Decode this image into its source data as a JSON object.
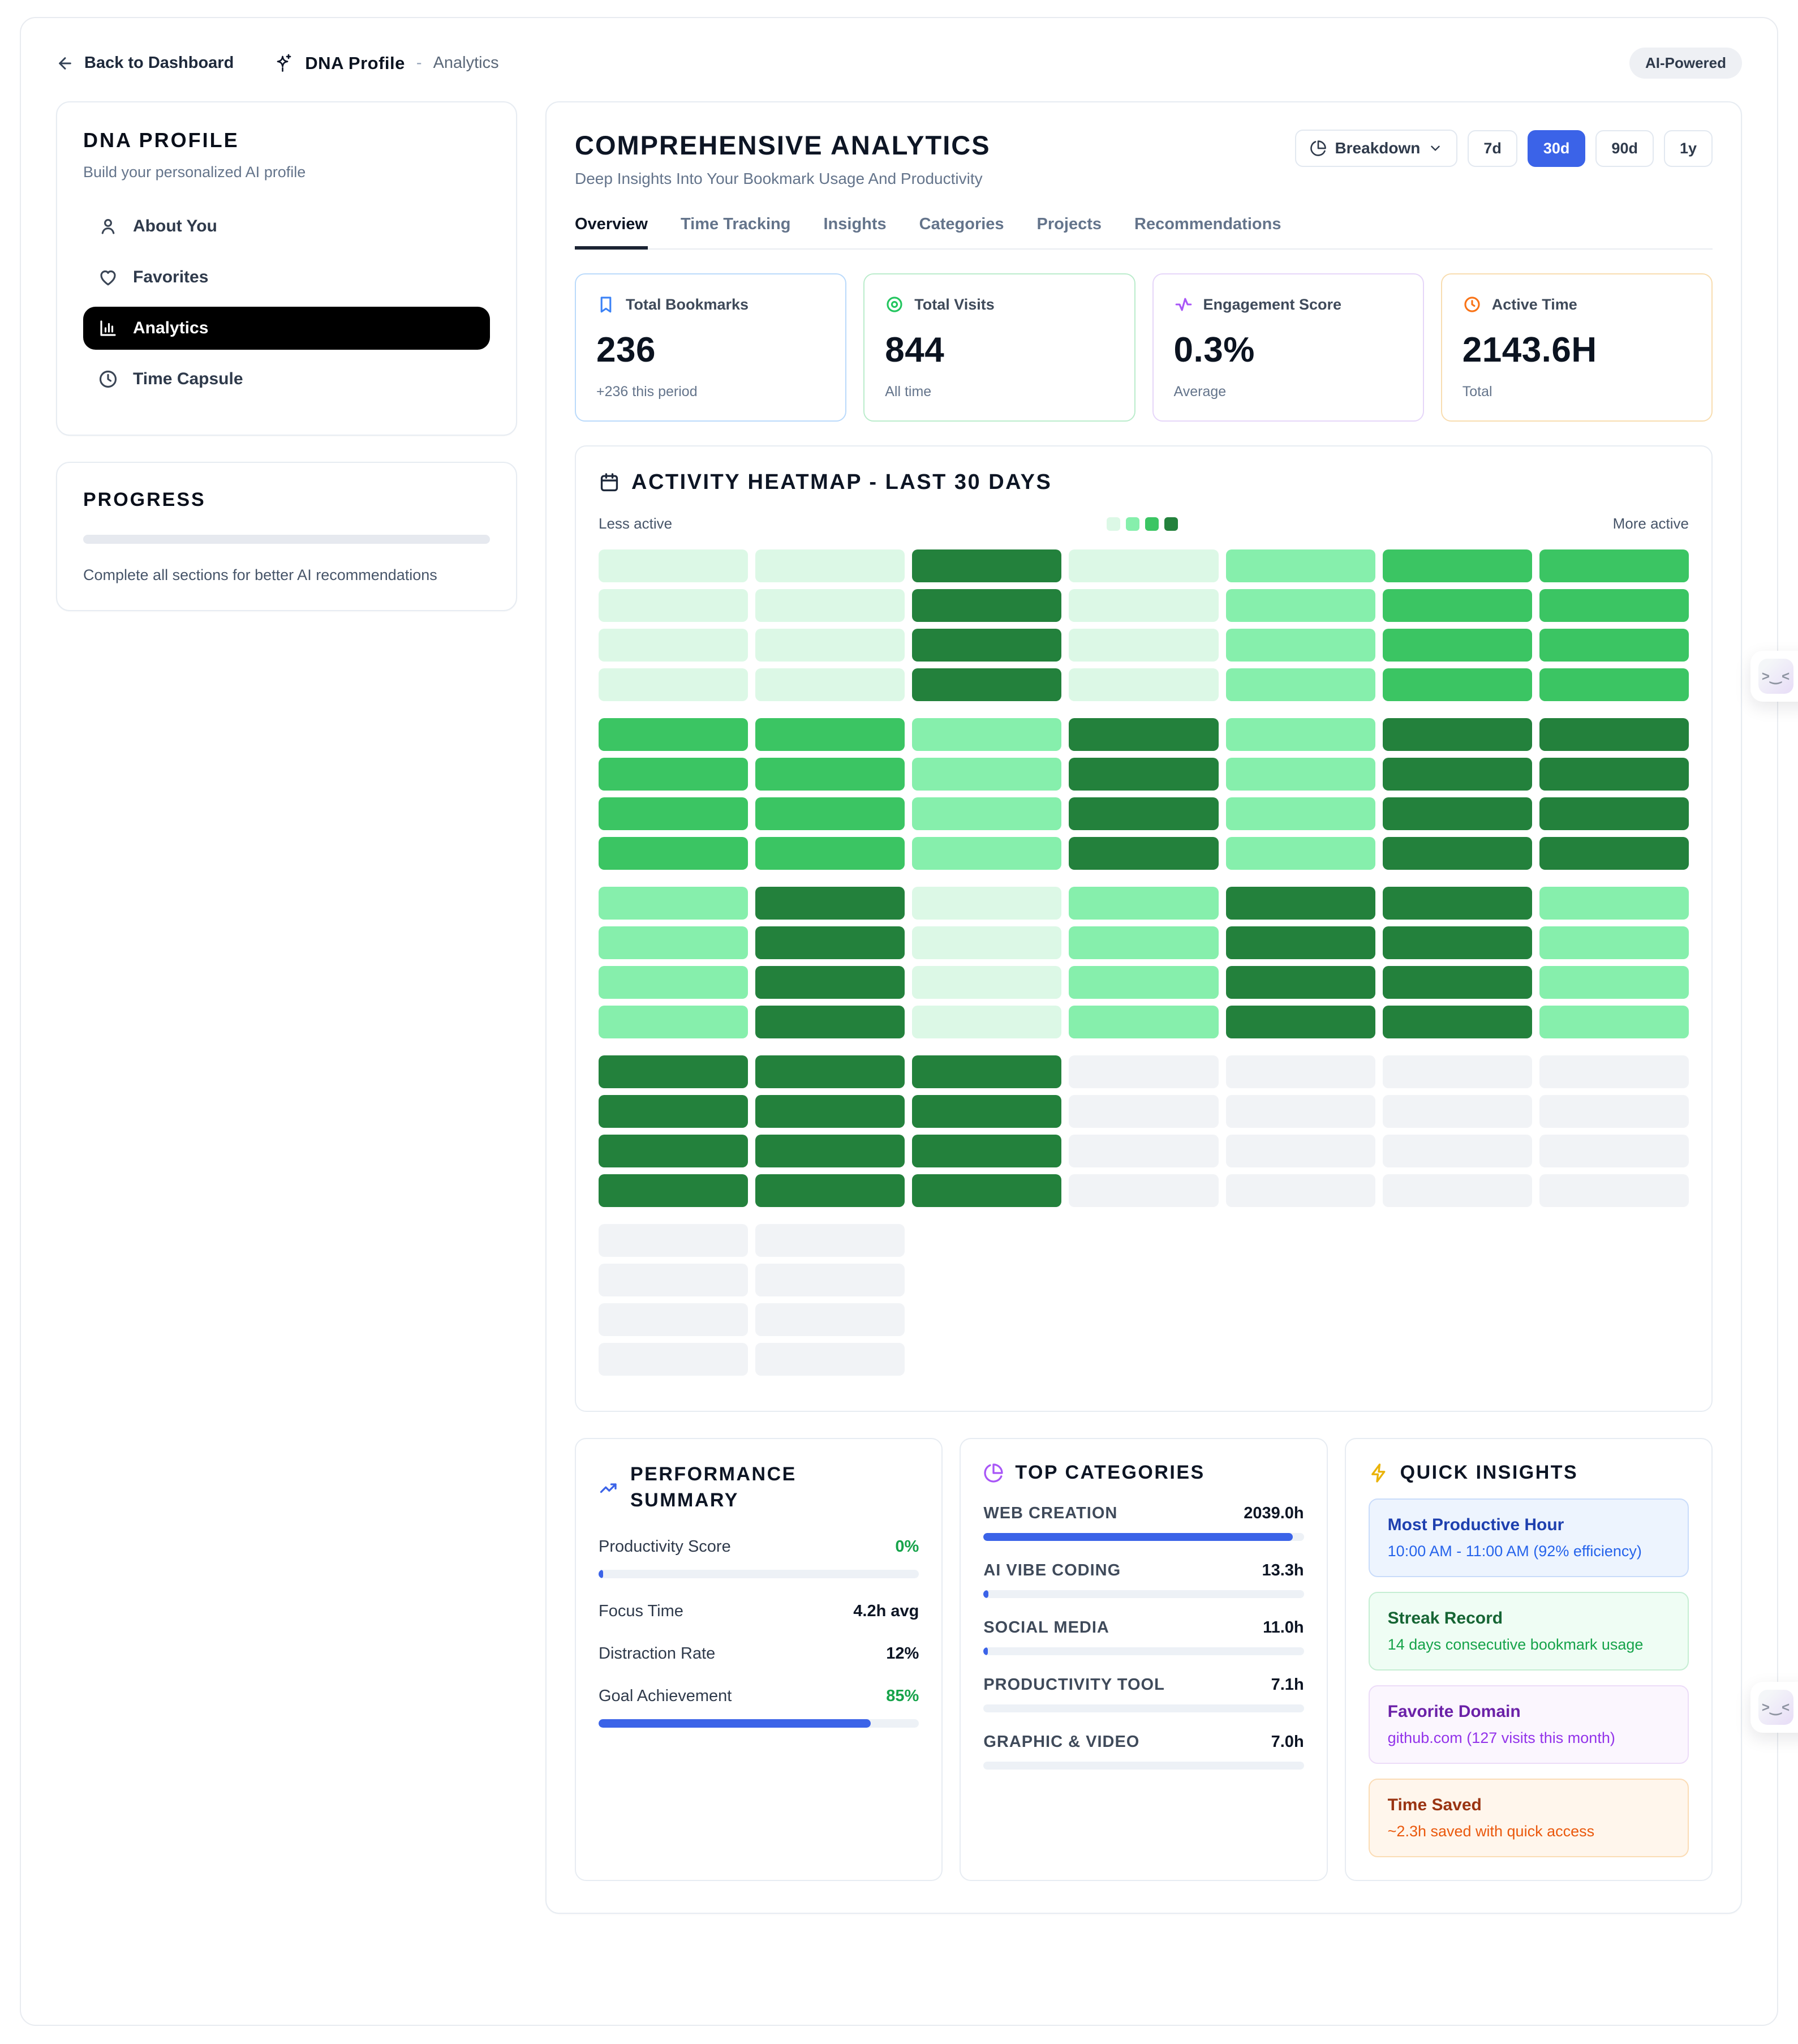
{
  "header": {
    "back_label": "Back to Dashboard",
    "app_title": "DNA Profile",
    "separator": "-",
    "section": "Analytics",
    "badge": "AI-Powered"
  },
  "sidebar": {
    "title": "DNA PROFILE",
    "subtitle": "Build your personalized AI profile",
    "items": [
      {
        "label": "About You",
        "icon": "user-icon"
      },
      {
        "label": "Favorites",
        "icon": "heart-icon"
      },
      {
        "label": "Analytics",
        "icon": "bar-chart-icon"
      },
      {
        "label": "Time Capsule",
        "icon": "clock-icon"
      }
    ],
    "active_item": "Analytics"
  },
  "progress": {
    "title": "PROGRESS",
    "percent": 0,
    "note": "Complete all sections for better AI recommendations"
  },
  "main": {
    "title": "COMPREHENSIVE ANALYTICS",
    "subtitle": "Deep Insights Into Your Bookmark Usage And Productivity",
    "breakdown_label": "Breakdown",
    "ranges": [
      "7d",
      "30d",
      "90d",
      "1y"
    ],
    "active_range": "30d",
    "tabs": [
      "Overview",
      "Time Tracking",
      "Insights",
      "Categories",
      "Projects",
      "Recommendations"
    ],
    "active_tab": "Overview",
    "stats": [
      {
        "label": "Total Bookmarks",
        "value": "236",
        "note": "+236 this period",
        "accent": "#3b82f6"
      },
      {
        "label": "Total Visits",
        "value": "844",
        "note": "All time",
        "accent": "#22c55e"
      },
      {
        "label": "Engagement Score",
        "value": "0.3%",
        "note": "Average",
        "accent": "#a855f7"
      },
      {
        "label": "Active Time",
        "value": "2143.6H",
        "note": "Total",
        "accent": "#f97316"
      }
    ],
    "heatmap": {
      "title": "ACTIVITY HEATMAP - LAST 30 DAYS",
      "legend_less": "Less active",
      "legend_more": "More active",
      "level_colors": [
        "#f1f3f6",
        "#dcf8e6",
        "#86efac",
        "#3bc563",
        "#23813c"
      ],
      "rows_per_week": 4,
      "weeks": [
        [
          1,
          1,
          4,
          1,
          2,
          3,
          3
        ],
        [
          3,
          3,
          2,
          4,
          2,
          4,
          4
        ],
        [
          2,
          4,
          1,
          2,
          4,
          4,
          2
        ],
        [
          4,
          4,
          4,
          0,
          0,
          0,
          0
        ],
        [
          0,
          0
        ]
      ]
    },
    "performance": {
      "title": "PERFORMANCE SUMMARY",
      "rows": [
        {
          "label": "Productivity Score",
          "value": "0%",
          "green": true,
          "bar": 1.5
        },
        {
          "label": "Focus Time",
          "value": "4.2h avg"
        },
        {
          "label": "Distraction Rate",
          "value": "12%"
        },
        {
          "label": "Goal Achievement",
          "value": "85%",
          "green": true,
          "bar": 85
        }
      ]
    },
    "categories": {
      "title": "TOP CATEGORIES",
      "items": [
        {
          "label": "WEB CREATION",
          "value": "2039.0h",
          "bar": 96.5
        },
        {
          "label": "AI VIBE CODING",
          "value": "13.3h",
          "bar": 1.5
        },
        {
          "label": "SOCIAL MEDIA",
          "value": "11.0h",
          "bar": 1.3
        },
        {
          "label": "PRODUCTIVITY TOOL",
          "value": "7.1h",
          "bar": 0
        },
        {
          "label": "GRAPHIC & VIDEO",
          "value": "7.0h",
          "bar": 0
        }
      ]
    },
    "insights": {
      "title": "QUICK INSIGHTS",
      "items": [
        {
          "title": "Most Productive Hour",
          "text": "10:00 AM - 11:00 AM (92% efficiency)",
          "theme": "blue"
        },
        {
          "title": "Streak Record",
          "text": "14 days consecutive bookmark usage",
          "theme": "green"
        },
        {
          "title": "Favorite Domain",
          "text": "github.com (127 visits this month)",
          "theme": "purple"
        },
        {
          "title": "Time Saved",
          "text": "~2.3h saved with quick access",
          "theme": "orange"
        }
      ]
    }
  },
  "floating": {
    "face": ">‿<"
  }
}
